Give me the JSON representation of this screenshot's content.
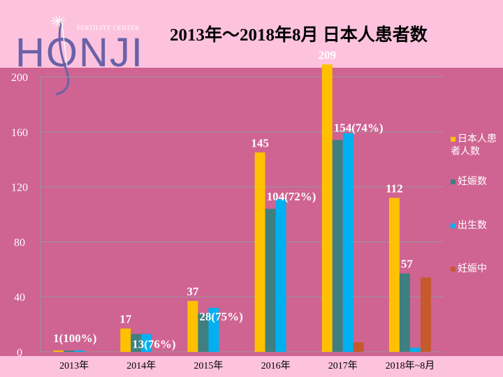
{
  "logo": {
    "name": "HONJI",
    "subtitle": "FERTILITY CENTER"
  },
  "chart_data": {
    "type": "bar",
    "title": "2013年〜2018年8月 日本人患者数",
    "categories": [
      "2013年",
      "2014年",
      "2015年",
      "2016年",
      "2017年",
      "2018年~8月"
    ],
    "series": [
      {
        "name": "日本人患者人数",
        "color": "#ffc000",
        "values": [
          1,
          17,
          37,
          145,
          209,
          112
        ]
      },
      {
        "name": "妊娠数",
        "color": "#3f7f80",
        "values": [
          1,
          13,
          28,
          104,
          154,
          57
        ]
      },
      {
        "name": "出生数",
        "color": "#00b0f0",
        "values": [
          1,
          13,
          32,
          111,
          159,
          3
        ]
      },
      {
        "name": "妊娠中",
        "color": "#c55a2e",
        "values": [
          0,
          0,
          0,
          0,
          7,
          54
        ]
      }
    ],
    "data_labels": [
      "1(100%)",
      "17",
      "13(76%)",
      "37",
      "28(75%)",
      "145",
      "104(72%)",
      "209",
      "154(74%)",
      "112",
      "57"
    ],
    "ylim": [
      0,
      200
    ],
    "yticks": [
      "0",
      "40",
      "80",
      "120",
      "160",
      "200"
    ],
    "grid": true,
    "legend_position": "right"
  }
}
